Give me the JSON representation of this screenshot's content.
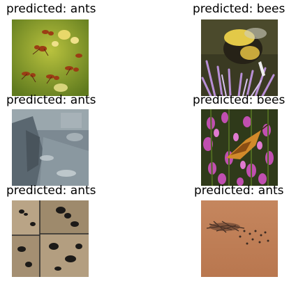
{
  "figure": {
    "panels": [
      {
        "title": "predicted: ants",
        "image_name": "ants-on-leaf-photo",
        "subject": "ants"
      },
      {
        "title": "predicted: bees",
        "image_name": "bumblebee-on-thistle-photo",
        "subject": "bee"
      },
      {
        "title": "predicted: ants",
        "image_name": "wet-surface-photo",
        "subject": "surface"
      },
      {
        "title": "predicted: bees",
        "image_name": "butterfly-on-purple-flowers-photo",
        "subject": "butterfly"
      },
      {
        "title": "predicted: ants",
        "image_name": "ants-collage-photo",
        "subject": "ants"
      },
      {
        "title": "predicted: ants",
        "image_name": "ants-on-sand-photo",
        "subject": "ants"
      }
    ]
  }
}
